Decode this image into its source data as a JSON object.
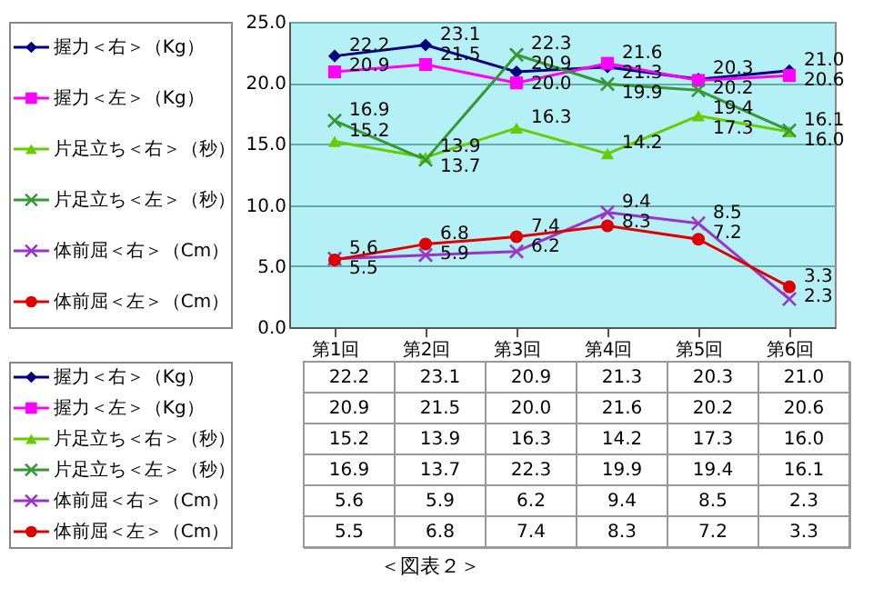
{
  "chart_data": {
    "type": "line",
    "categories": [
      "第1回",
      "第2回",
      "第3回",
      "第4回",
      "第5回",
      "第6回"
    ],
    "series": [
      {
        "name": "握力＜右＞（Kg）",
        "color": "#000080",
        "marker": "diamond",
        "values": [
          22.2,
          23.1,
          20.9,
          21.3,
          20.3,
          21.0
        ],
        "value_labels": [
          "22.2",
          "23.1",
          "20.9",
          "21.3",
          "20.3",
          "21.0"
        ]
      },
      {
        "name": "握力＜左＞（Kg）",
        "color": "#ff00ff",
        "marker": "square",
        "values": [
          20.9,
          21.5,
          20.0,
          21.6,
          20.2,
          20.6
        ],
        "value_labels": [
          "20.9",
          "21.5",
          "20.0",
          "21.6",
          "20.2",
          "20.6"
        ]
      },
      {
        "name": "片足立ち＜右＞（秒）",
        "color": "#66cc00",
        "marker": "triangle",
        "values": [
          15.2,
          13.9,
          16.3,
          14.2,
          17.3,
          16.0
        ],
        "value_labels": [
          "15.2",
          "13.9",
          "16.3",
          "14.2",
          "17.3",
          "16.0"
        ]
      },
      {
        "name": "片足立ち＜左＞（秒）",
        "color": "#339933",
        "marker": "cross",
        "values": [
          16.9,
          13.7,
          22.3,
          19.9,
          19.4,
          16.1
        ],
        "value_labels": [
          "16.9",
          "13.7",
          "22.3",
          "19.9",
          "19.4",
          "16.1"
        ]
      },
      {
        "name": "体前屈＜右＞（Cm）",
        "color": "#9933cc",
        "marker": "cross",
        "values": [
          5.6,
          5.9,
          6.2,
          9.4,
          8.5,
          2.3
        ],
        "value_labels": [
          "5.6",
          "5.9",
          "6.2",
          "9.4",
          "8.5",
          "2.3"
        ]
      },
      {
        "name": "体前屈＜左＞（Cm）",
        "color": "#dd0000",
        "marker": "circle",
        "values": [
          5.5,
          6.8,
          7.4,
          8.3,
          7.2,
          3.3
        ],
        "value_labels": [
          "5.5",
          "6.8",
          "7.4",
          "8.3",
          "7.2",
          "3.3"
        ]
      }
    ],
    "ylim": [
      0,
      25
    ],
    "yticks": [
      {
        "value": 0,
        "label": "0.0"
      },
      {
        "value": 5,
        "label": "5.0"
      },
      {
        "value": 10,
        "label": "10.0"
      },
      {
        "value": 15,
        "label": "15.0"
      },
      {
        "value": 20,
        "label": "20.0"
      },
      {
        "value": 25,
        "label": "25.0"
      }
    ],
    "grid": "y",
    "legend": "left",
    "data_labels": true,
    "annotations": [
      "＜図表２＞"
    ]
  }
}
